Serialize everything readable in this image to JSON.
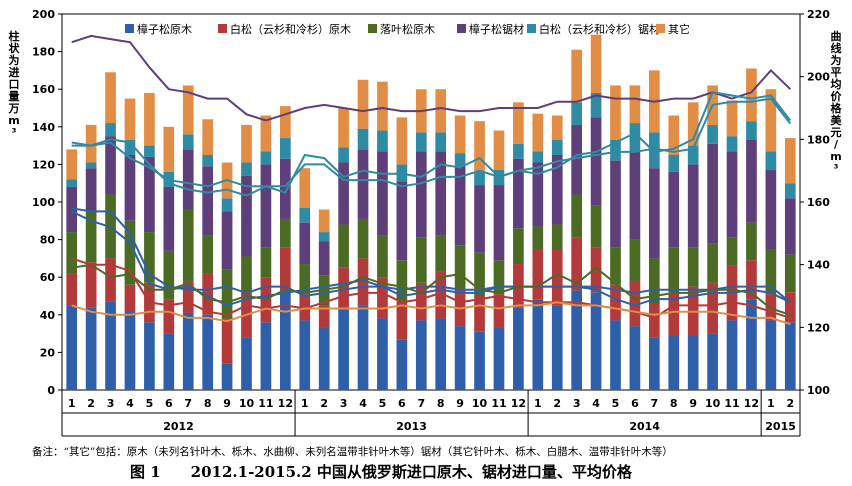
{
  "note": "备注：“其它”包括：原木（未列名针叶木、栎木、水曲柳、未列名温带非针叶木等）锯材（其它针叶木、栎木、白腊木、温带非针叶木等）",
  "caption": "图 1　　2012.1-2015.2 中国从俄罗斯进口原木、锯材进口量、平均价格",
  "colors": {
    "樟子松原木": "#2e5fa8",
    "白松原木": "#b33a3a",
    "落叶松原木": "#4b6b24",
    "樟子松锯材": "#5e3f7a",
    "白松锯材": "#2f8aa3",
    "其它": "#e28d45"
  },
  "chart_data": {
    "type": "bar",
    "left_axis_title": "柱状为进口量万m³",
    "right_axis_title": "曲线为平均价格美元/m³",
    "y_left_lim": [
      0,
      200
    ],
    "y_left_ticks": [
      0,
      20,
      40,
      60,
      80,
      100,
      120,
      140,
      160,
      180,
      200
    ],
    "y_right_lim": [
      100,
      220
    ],
    "y_right_ticks": [
      100,
      120,
      140,
      160,
      180,
      200,
      220
    ],
    "legend_position": "top",
    "years": [
      {
        "label": "2012",
        "months": 12
      },
      {
        "label": "2013",
        "months": 12
      },
      {
        "label": "2014",
        "months": 12
      },
      {
        "label": "2015",
        "months": 2
      }
    ],
    "categories": [
      "1",
      "2",
      "3",
      "4",
      "5",
      "6",
      "7",
      "8",
      "9",
      "10",
      "11",
      "12",
      "1",
      "2",
      "3",
      "4",
      "5",
      "6",
      "7",
      "8",
      "9",
      "10",
      "11",
      "12",
      "1",
      "2",
      "3",
      "4",
      "5",
      "6",
      "7",
      "8",
      "9",
      "10",
      "11",
      "12",
      "1",
      "2"
    ],
    "series": [
      {
        "name": "樟子松原木",
        "values": [
          45,
          44,
          47,
          42,
          36,
          30,
          41,
          40,
          14,
          28,
          36,
          52,
          37,
          33,
          43,
          45,
          38,
          27,
          37,
          38,
          34,
          31,
          33,
          44,
          48,
          45,
          53,
          52,
          37,
          34,
          28,
          29,
          29,
          30,
          37,
          48,
          37,
          36
        ]
      },
      {
        "name": "白松（云杉和冷杉）原木",
        "values": [
          17,
          24,
          23,
          14,
          21,
          18,
          17,
          22,
          24,
          24,
          24,
          24,
          14,
          12,
          22,
          25,
          22,
          20,
          20,
          25,
          20,
          19,
          18,
          23,
          27,
          30,
          28,
          24,
          19,
          24,
          18,
          23,
          26,
          27,
          29,
          21,
          14,
          16
        ]
      },
      {
        "name": "落叶松原木",
        "values": [
          22,
          27,
          34,
          34,
          27,
          26,
          38,
          20,
          26,
          19,
          16,
          15,
          16,
          16,
          23,
          21,
          22,
          22,
          24,
          19,
          23,
          23,
          18,
          19,
          12,
          13,
          23,
          22,
          20,
          22,
          24,
          24,
          21,
          21,
          15,
          20,
          24,
          20
        ]
      },
      {
        "name": "樟子松锯材",
        "values": [
          24,
          23,
          31,
          35,
          40,
          34,
          32,
          37,
          31,
          43,
          44,
          32,
          22,
          18,
          33,
          37,
          45,
          42,
          46,
          45,
          42,
          36,
          40,
          37,
          34,
          37,
          37,
          47,
          46,
          47,
          48,
          40,
          44,
          53,
          46,
          44,
          42,
          30
        ]
      },
      {
        "name": "白松（云杉和冷杉）锯材",
        "values": [
          4,
          3,
          7,
          8,
          6,
          8,
          8,
          6,
          7,
          7,
          7,
          11,
          8,
          5,
          8,
          11,
          11,
          9,
          10,
          10,
          7,
          7,
          8,
          8,
          6,
          8,
          12,
          13,
          11,
          15,
          19,
          9,
          10,
          10,
          8,
          10,
          10,
          8
        ]
      },
      {
        "name": "其它",
        "values": [
          16,
          20,
          27,
          22,
          28,
          24,
          26,
          19,
          19,
          20,
          19,
          17,
          21,
          12,
          21,
          26,
          26,
          25,
          23,
          23,
          20,
          27,
          21,
          22,
          20,
          13,
          28,
          31,
          29,
          20,
          33,
          21,
          23,
          21,
          19,
          28,
          33,
          24
        ]
      }
    ],
    "price_lines": [
      {
        "values": [
          211,
          213,
          212,
          211,
          203,
          196,
          195,
          193,
          193,
          188,
          186,
          188,
          190,
          191,
          190,
          189,
          190,
          189,
          189,
          190,
          189,
          189,
          190,
          190,
          190,
          192,
          192,
          194,
          193,
          193,
          192,
          193,
          193,
          195,
          193,
          195,
          202,
          196
        ]
      },
      {
        "values": [
          179,
          178,
          180,
          179,
          172,
          166,
          164,
          163,
          164,
          162,
          165,
          163,
          175,
          174,
          168,
          170,
          169,
          169,
          168,
          172,
          171,
          174,
          168,
          170,
          169,
          171,
          175,
          176,
          179,
          182,
          176,
          177,
          180,
          195,
          194,
          193,
          194,
          186
        ]
      },
      {
        "values": [
          178,
          178,
          179,
          174,
          171,
          167,
          166,
          165,
          167,
          165,
          165,
          165,
          172,
          172,
          167,
          167,
          167,
          165,
          166,
          168,
          168,
          170,
          168,
          170,
          171,
          173,
          174,
          175,
          176,
          176,
          177,
          176,
          177,
          191,
          192,
          192,
          193,
          185
        ]
      },
      {
        "values": [
          158,
          157,
          157,
          150,
          137,
          133,
          132,
          132,
          133,
          131,
          133,
          133,
          130,
          131,
          132,
          133,
          133,
          132,
          133,
          133,
          132,
          132,
          133,
          133,
          133,
          133,
          133,
          133,
          132,
          131,
          132,
          132,
          132,
          132,
          133,
          133,
          133,
          128
        ]
      },
      {
        "values": [
          157,
          154,
          152,
          147,
          134,
          132,
          133,
          130,
          127,
          129,
          130,
          131,
          132,
          133,
          134,
          135,
          133,
          130,
          131,
          132,
          131,
          131,
          133,
          133,
          133,
          133,
          133,
          132,
          129,
          127,
          129,
          129,
          130,
          131,
          131,
          132,
          131,
          128
        ]
      },
      {
        "values": [
          139,
          140,
          136,
          137,
          132,
          132,
          134,
          129,
          128,
          130,
          129,
          132,
          131,
          132,
          133,
          136,
          134,
          133,
          131,
          136,
          137,
          132,
          131,
          133,
          133,
          137,
          134,
          139,
          134,
          129,
          130,
          131,
          131,
          132,
          132,
          131,
          126,
          124
        ]
      },
      {
        "values": [
          142,
          140,
          140,
          138,
          128,
          127,
          128,
          125,
          124,
          127,
          126,
          127,
          126,
          128,
          130,
          131,
          131,
          128,
          129,
          131,
          128,
          129,
          130,
          129,
          128,
          128,
          128,
          127,
          126,
          125,
          123,
          127,
          127,
          127,
          128,
          127,
          125,
          123
        ]
      },
      {
        "values": [
          127,
          125,
          124,
          124,
          125,
          125,
          123,
          123,
          122,
          124,
          126,
          125,
          126,
          126,
          126,
          126,
          126,
          127,
          126,
          127,
          126,
          127,
          126,
          127,
          127,
          128,
          127,
          127,
          126,
          125,
          124,
          125,
          125,
          125,
          124,
          123,
          123,
          121
        ]
      }
    ]
  }
}
